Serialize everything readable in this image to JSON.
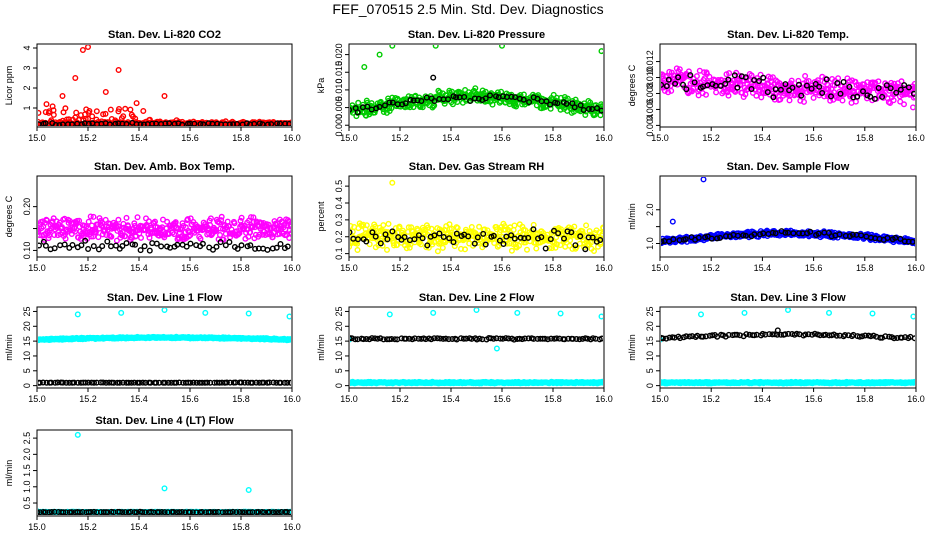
{
  "figure_title": "FEF_070515  2.5 Min. Std. Dev. Diagnostics",
  "chart_data": [
    {
      "type": "scatter",
      "title": "Stan. Dev. Li-820 CO2",
      "xlabel": "",
      "ylabel": "Licor ppm",
      "xlim": [
        15.0,
        16.0
      ],
      "ylim": [
        0.05,
        4.2
      ],
      "xticks": [
        15.0,
        15.2,
        15.4,
        15.6,
        15.8,
        16.0
      ],
      "yticks": [
        1,
        2,
        3,
        4
      ],
      "series": [
        {
          "color": "#ff0000",
          "base": 0.2,
          "noise": 0.15,
          "spread": 0.5,
          "density": 0.55,
          "spikes": [
            [
              15.18,
              3.9
            ],
            [
              15.2,
              4.05
            ],
            [
              15.15,
              2.5
            ],
            [
              15.32,
              2.9
            ],
            [
              15.27,
              1.8
            ],
            [
              15.5,
              1.6
            ],
            [
              15.1,
              1.6
            ]
          ],
          "taper": true,
          "count": 380
        },
        {
          "color": "#000000",
          "base": 0.2,
          "noise": 0.06,
          "spread": 0,
          "density": 0,
          "count": 60
        }
      ]
    },
    {
      "type": "scatter",
      "title": "Stan. Dev. Li-820 Pressure",
      "xlabel": "",
      "ylabel": "kPa",
      "xlim": [
        15.0,
        16.0
      ],
      "ylim": [
        -0.0005,
        0.023
      ],
      "xticks": [
        15.0,
        15.2,
        15.4,
        15.6,
        15.8,
        16.0
      ],
      "yticks": [
        0.0,
        0.005,
        0.01,
        0.015,
        0.02
      ],
      "ytlabels": [
        "0.000",
        "0.005",
        "0.010",
        "0.015",
        "0.020"
      ],
      "series": [
        {
          "color": "#00cc00",
          "base": 0.004,
          "bump": 0.004,
          "noise": 0.0025,
          "count": 420,
          "spikes": [
            [
              15.06,
              0.0165
            ],
            [
              15.12,
              0.02
            ],
            [
              15.17,
              0.0225
            ],
            [
              15.34,
              0.0225
            ],
            [
              15.6,
              0.0225
            ],
            [
              15.99,
              0.021
            ]
          ]
        },
        {
          "color": "#000000",
          "base": 0.004,
          "bump": 0.004,
          "noise": 0.0012,
          "count": 60,
          "spikes": [
            [
              15.33,
              0.0135
            ]
          ]
        }
      ]
    },
    {
      "type": "scatter",
      "title": "Stan. Dev. Li-820 Temp.",
      "xlabel": "",
      "ylabel": "degrees C",
      "xlim": [
        15.0,
        16.0
      ],
      "ylim": [
        0.0038,
        0.0142
      ],
      "xticks": [
        15.0,
        15.2,
        15.4,
        15.6,
        15.8,
        16.0
      ],
      "yticks": [
        0.004,
        0.006,
        0.008,
        0.01,
        0.012
      ],
      "ytlabels": [
        "0.004",
        "0.006",
        "0.008",
        "0.010",
        "0.012"
      ],
      "series": [
        {
          "color": "#ff00ff",
          "base": 0.0095,
          "slope": -0.0015,
          "noise": 0.0018,
          "count": 420
        },
        {
          "color": "#000000",
          "base": 0.0095,
          "slope": -0.0015,
          "noise": 0.0014,
          "count": 60
        }
      ]
    },
    {
      "type": "scatter",
      "title": "Stan. Dev. Amb. Box Temp.",
      "xlabel": "",
      "ylabel": "degrees C",
      "xlim": [
        15.0,
        16.0
      ],
      "ylim": [
        0.085,
        0.27
      ],
      "xticks": [
        15.0,
        15.2,
        15.4,
        15.6,
        15.8,
        16.0
      ],
      "yticks": [
        0.1,
        0.15,
        0.2
      ],
      "ytlabels": [
        "0.10",
        "",
        "0.20"
      ],
      "series": [
        {
          "color": "#ff00ff",
          "base": 0.15,
          "noise": 0.032,
          "count": 420
        },
        {
          "color": "#000000",
          "base": 0.11,
          "noise": 0.012,
          "count": 60
        }
      ]
    },
    {
      "type": "scatter",
      "title": "Stan. Dev. Gas Stream RH",
      "xlabel": "",
      "ylabel": "percent",
      "xlim": [
        15.0,
        16.0
      ],
      "ylim": [
        0.08,
        0.56
      ],
      "xticks": [
        15.0,
        15.2,
        15.4,
        15.6,
        15.8,
        16.0
      ],
      "yticks": [
        0.1,
        0.2,
        0.3,
        0.4,
        0.5
      ],
      "ytlabels": [
        "0.1",
        "0.2",
        "0.3",
        "0.4",
        "0.5"
      ],
      "series": [
        {
          "color": "#ffff00",
          "base": 0.2,
          "noise": 0.09,
          "count": 420,
          "spikes": [
            [
              15.17,
              0.52
            ]
          ]
        },
        {
          "color": "#000000",
          "base": 0.19,
          "noise": 0.07,
          "count": 60
        }
      ]
    },
    {
      "type": "scatter",
      "title": "Stan. Dev. Sample Flow",
      "xlabel": "",
      "ylabel": "ml/min",
      "xlim": [
        15.0,
        16.0
      ],
      "ylim": [
        0.6,
        3.0
      ],
      "xticks": [
        15.0,
        15.2,
        15.4,
        15.6,
        15.8,
        16.0
      ],
      "yticks": [
        1.0,
        1.5,
        2.0
      ],
      "ytlabels": [
        "1.0",
        "",
        "2.0"
      ],
      "series": [
        {
          "color": "#0000ff",
          "base": 1.05,
          "bump": 0.25,
          "noise": 0.1,
          "count": 420,
          "spikes": [
            [
              15.17,
              2.9
            ],
            [
              15.05,
              1.65
            ]
          ]
        },
        {
          "color": "#000000",
          "base": 1.05,
          "bump": 0.25,
          "noise": 0.08,
          "count": 60
        }
      ]
    },
    {
      "type": "scatter",
      "title": "Stan. Dev. Line 1 Flow",
      "xlabel": "",
      "ylabel": "ml/min",
      "xlim": [
        15.0,
        16.0
      ],
      "ylim": [
        -0.8,
        26.5
      ],
      "xticks": [
        15.0,
        15.2,
        15.4,
        15.6,
        15.8,
        16.0
      ],
      "yticks": [
        0,
        5,
        10,
        15,
        20,
        25
      ],
      "series": [
        {
          "color": "#00ffff",
          "base": 15.5,
          "bump": 0.7,
          "noise": 0.3,
          "count": 420,
          "spikes": [
            [
              15.16,
              24
            ],
            [
              15.33,
              24.5
            ],
            [
              15.5,
              25.5
            ],
            [
              15.66,
              24.5
            ],
            [
              15.83,
              24.3
            ],
            [
              15.99,
              23.3
            ]
          ]
        },
        {
          "color": "#000000",
          "base": 1.0,
          "noise": 0.08,
          "count": 90
        }
      ]
    },
    {
      "type": "scatter",
      "title": "Stan. Dev. Line 2 Flow",
      "xlabel": "",
      "ylabel": "ml/min",
      "xlim": [
        15.0,
        16.0
      ],
      "ylim": [
        -0.8,
        26.5
      ],
      "xticks": [
        15.0,
        15.2,
        15.4,
        15.6,
        15.8,
        16.0
      ],
      "yticks": [
        0,
        5,
        10,
        15,
        20,
        25
      ],
      "series": [
        {
          "color": "#00ffff",
          "base": 1.0,
          "noise": 0.3,
          "count": 420,
          "spikes": [
            [
              15.16,
              24
            ],
            [
              15.33,
              24.5
            ],
            [
              15.5,
              25.5
            ],
            [
              15.66,
              24.5
            ],
            [
              15.83,
              24.3
            ],
            [
              15.99,
              23.3
            ],
            [
              15.0,
              15.5
            ],
            [
              15.58,
              12.5
            ]
          ]
        },
        {
          "color": "#000000",
          "base": 15.8,
          "noise": 0.3,
          "count": 90
        }
      ]
    },
    {
      "type": "scatter",
      "title": "Stan. Dev. Line 3 Flow",
      "xlabel": "",
      "ylabel": "ml/min",
      "xlim": [
        15.0,
        16.0
      ],
      "ylim": [
        -0.8,
        26.5
      ],
      "xticks": [
        15.0,
        15.2,
        15.4,
        15.6,
        15.8,
        16.0
      ],
      "yticks": [
        0,
        5,
        10,
        15,
        20,
        25
      ],
      "series": [
        {
          "color": "#00ffff",
          "base": 1.0,
          "noise": 0.3,
          "count": 420,
          "spikes": [
            [
              15.16,
              24
            ],
            [
              15.33,
              24.5
            ],
            [
              15.5,
              25.5
            ],
            [
              15.66,
              24.5
            ],
            [
              15.83,
              24.3
            ],
            [
              15.99,
              23.3
            ],
            [
              15.0,
              15.5
            ]
          ]
        },
        {
          "color": "#000000",
          "base": 16.0,
          "bump": 1.2,
          "noise": 0.4,
          "count": 90,
          "spikes": [
            [
              15.46,
              18.6
            ]
          ]
        }
      ]
    },
    {
      "type": "scatter",
      "title": "Stan. Dev. Line 4 (LT) Flow",
      "xlabel": "",
      "ylabel": "ml/min",
      "xlim": [
        15.0,
        16.0
      ],
      "ylim": [
        0.1,
        2.75
      ],
      "xticks": [
        15.0,
        15.2,
        15.4,
        15.6,
        15.8,
        16.0
      ],
      "yticks": [
        0.5,
        1.0,
        1.5,
        2.0,
        2.5
      ],
      "ytlabels": [
        "0.5",
        "1.0",
        "1.5",
        "2.0",
        "2.5"
      ],
      "series": [
        {
          "color": "#00ffff",
          "base": 0.22,
          "noise": 0.015,
          "count": 420,
          "spikes": [
            [
              15.16,
              2.6
            ],
            [
              15.5,
              0.95
            ],
            [
              15.83,
              0.9
            ],
            [
              15.0,
              0.25
            ]
          ]
        },
        {
          "color": "#000000",
          "base": 0.22,
          "noise": 0.01,
          "count": 90
        }
      ]
    }
  ]
}
